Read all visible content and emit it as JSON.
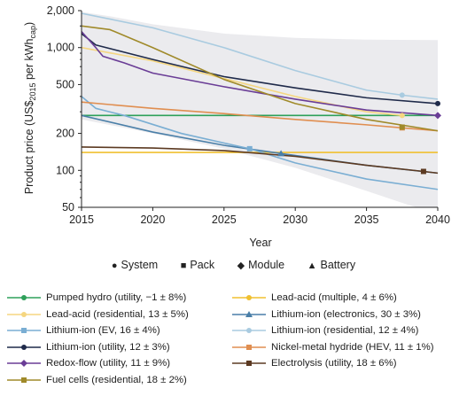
{
  "chart_data": {
    "type": "line",
    "xlabel": "Year",
    "ylabel_main": "Product price (US$",
    "ylabel_sub1": "2015",
    "ylabel_mid": " per kWh",
    "ylabel_sub2": "cap",
    "ylabel_end": ")",
    "xlim": [
      2015,
      2040
    ],
    "ylim": [
      50,
      2000
    ],
    "y_scale": "log",
    "x_ticks": [
      "2015",
      "2020",
      "2025",
      "2030",
      "2035",
      "2040"
    ],
    "y_ticks": [
      {
        "value": 50,
        "label": "50"
      },
      {
        "value": 100,
        "label": "100"
      },
      {
        "value": 200,
        "label": "200"
      },
      {
        "value": 500,
        "label": "500"
      },
      {
        "value": 1000,
        "label": "1,000"
      },
      {
        "value": 2000,
        "label": "2,000"
      }
    ],
    "uncertainty_band": {
      "color": "#ebebee",
      "upper": [
        [
          2015,
          1950
        ],
        [
          2017,
          1800
        ],
        [
          2020,
          1550
        ],
        [
          2025,
          1300
        ],
        [
          2030,
          1200
        ],
        [
          2035,
          1160
        ],
        [
          2040,
          1150
        ]
      ],
      "lower": [
        [
          2015,
          260
        ],
        [
          2020,
          200
        ],
        [
          2025,
          150
        ],
        [
          2030,
          105
        ],
        [
          2035,
          68
        ],
        [
          2038,
          52
        ],
        [
          2040,
          45
        ]
      ]
    },
    "series": [
      {
        "name": "Pumped hydro (utility, −1 ± 8%)",
        "color": "#2ea05a",
        "marker": "circle",
        "points": [
          [
            2015,
            280
          ],
          [
            2040,
            280
          ]
        ],
        "marker_at": null
      },
      {
        "name": "Lead-acid (multiple, 4 ± 6%)",
        "color": "#f0c030",
        "marker": "circle",
        "points": [
          [
            2015,
            140
          ],
          [
            2040,
            140
          ]
        ],
        "marker_at": null
      },
      {
        "name": "Lead-acid (residential, 13 ± 5%)",
        "color": "#f5d680",
        "marker": "circle",
        "points": [
          [
            2015,
            1000
          ],
          [
            2020,
            780
          ],
          [
            2025,
            560
          ],
          [
            2030,
            400
          ],
          [
            2035,
            300
          ],
          [
            2037.5,
            280
          ]
        ],
        "marker_at": [
          2037.5,
          280
        ]
      },
      {
        "name": "Lithium-ion (electronics, 30 ± 3%)",
        "color": "#4a7fa8",
        "marker": "triangle",
        "points": [
          [
            2015,
            280
          ],
          [
            2020,
            205
          ],
          [
            2025,
            160
          ],
          [
            2029,
            137
          ],
          [
            2035,
            110
          ],
          [
            2040,
            95
          ]
        ],
        "marker_at": [
          2029,
          137
        ]
      },
      {
        "name": "Lithium-ion (EV, 16 ± 4%)",
        "color": "#7aaed3",
        "marker": "square",
        "points": [
          [
            2015,
            400
          ],
          [
            2016,
            320
          ],
          [
            2018,
            280
          ],
          [
            2022,
            200
          ],
          [
            2026.8,
            150
          ],
          [
            2030,
            115
          ],
          [
            2035,
            85
          ],
          [
            2040,
            70
          ]
        ],
        "marker_at": [
          2026.8,
          150
        ]
      },
      {
        "name": "Lithium-ion (residential, 12 ± 4%)",
        "color": "#a9cbe0",
        "marker": "circle",
        "points": [
          [
            2015,
            1900
          ],
          [
            2020,
            1450
          ],
          [
            2025,
            1000
          ],
          [
            2030,
            650
          ],
          [
            2035,
            450
          ],
          [
            2037.5,
            410
          ],
          [
            2040,
            380
          ]
        ],
        "marker_at": [
          2037.5,
          410
        ]
      },
      {
        "name": "Lithium-ion (utility, 12 ± 3%)",
        "color": "#1f2a4a",
        "marker": "circle",
        "points": [
          [
            2015,
            1300
          ],
          [
            2016,
            1050
          ],
          [
            2020,
            800
          ],
          [
            2025,
            580
          ],
          [
            2030,
            470
          ],
          [
            2035,
            390
          ],
          [
            2040,
            350
          ]
        ],
        "marker_at": [
          2040,
          350
        ]
      },
      {
        "name": "Nickel-metal hydride (HEV, 11 ± 1%)",
        "color": "#e08e50",
        "marker": "square",
        "points": [
          [
            2015,
            360
          ],
          [
            2020,
            320
          ],
          [
            2025,
            290
          ],
          [
            2030,
            260
          ],
          [
            2035,
            235
          ],
          [
            2037.5,
            222
          ],
          [
            2040,
            210
          ]
        ],
        "marker_at": [
          2037.5,
          222
        ]
      },
      {
        "name": "Redox-flow (utility, 11 ± 9%)",
        "color": "#6a3d96",
        "marker": "diamond",
        "points": [
          [
            2015,
            1350
          ],
          [
            2016,
            1000
          ],
          [
            2016.5,
            850
          ],
          [
            2018,
            750
          ],
          [
            2020,
            620
          ],
          [
            2025,
            480
          ],
          [
            2030,
            380
          ],
          [
            2035,
            310
          ],
          [
            2040,
            280
          ]
        ],
        "marker_at": [
          2040,
          280
        ]
      },
      {
        "name": "Electrolysis (utility, 18 ± 6%)",
        "color": "#5c3a22",
        "marker": "square",
        "points": [
          [
            2015,
            155
          ],
          [
            2020,
            152
          ],
          [
            2025,
            145
          ],
          [
            2030,
            130
          ],
          [
            2035,
            110
          ],
          [
            2039,
            98
          ],
          [
            2040,
            95
          ]
        ],
        "marker_at": [
          2039,
          98
        ]
      },
      {
        "name": "Fuel cells (residential, 18 ± 2%)",
        "color": "#a08a2a",
        "marker": "square",
        "points": [
          [
            2015,
            1500
          ],
          [
            2017,
            1400
          ],
          [
            2020,
            1000
          ],
          [
            2025,
            550
          ],
          [
            2030,
            350
          ],
          [
            2035,
            260
          ],
          [
            2040,
            210
          ]
        ],
        "marker_at": [
          2037.5,
          225
        ]
      }
    ]
  },
  "marker_key": [
    {
      "symbol": "●",
      "label": "System"
    },
    {
      "symbol": "■",
      "label": "Pack"
    },
    {
      "symbol": "◆",
      "label": "Module"
    },
    {
      "symbol": "▲",
      "label": "Battery"
    }
  ]
}
